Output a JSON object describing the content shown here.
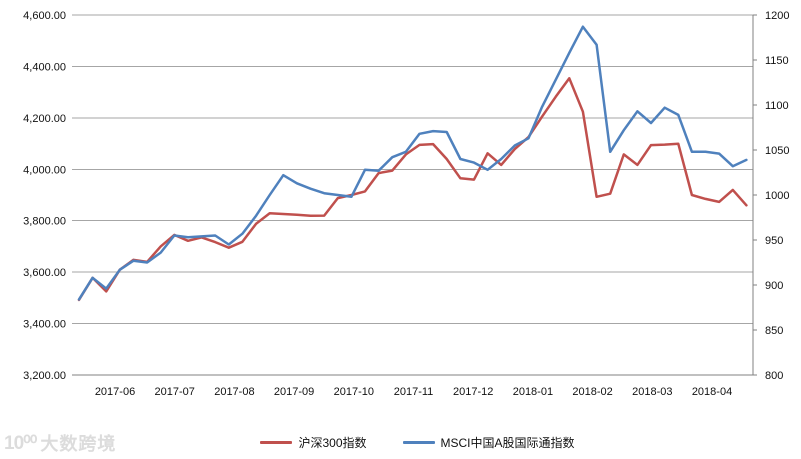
{
  "chart_data": {
    "type": "line",
    "title": "",
    "x_labels": [
      "2017-06",
      "2017-07",
      "2017-08",
      "2017-09",
      "2017-10",
      "2017-11",
      "2017-12",
      "2018-01",
      "2018-02",
      "2018-03",
      "2018-04"
    ],
    "left_axis": {
      "min": 3200,
      "max": 4600,
      "step": 200,
      "tick_labels": [
        "3,200.00",
        "3,400.00",
        "3,600.00",
        "3,800.00",
        "4,000.00",
        "4,200.00",
        "4,400.00",
        "4,600.00"
      ]
    },
    "right_axis": {
      "min": 800,
      "max": 1200,
      "step": 50,
      "tick_labels": [
        "800",
        "850",
        "900",
        "950",
        "1000",
        "1050",
        "1100",
        "1150",
        "1200"
      ]
    },
    "grid": true,
    "legend_position": "bottom",
    "series": [
      {
        "name": "沪深300指数",
        "axis": "left",
        "color": "#C0504D",
        "values": [
          3492,
          3578,
          3525,
          3610,
          3648,
          3640,
          3700,
          3745,
          3722,
          3735,
          3717,
          3695,
          3718,
          3788,
          3829,
          3826,
          3823,
          3819,
          3820,
          3888,
          3900,
          3914,
          3985,
          3995,
          4058,
          4095,
          4098,
          4040,
          3965,
          3960,
          4062,
          4017,
          4079,
          4125,
          4205,
          4282,
          4354,
          4224,
          3893,
          3905,
          4058,
          4017,
          4094,
          4096,
          4099,
          3900,
          3885,
          3873,
          3920,
          3860
        ]
      },
      {
        "name": "MSCI中国A股国际通指数",
        "axis": "right",
        "color": "#4F81BD",
        "values": [
          884,
          908,
          896,
          917,
          927,
          925,
          936,
          955,
          953,
          954,
          955,
          945,
          957,
          977,
          1000,
          1022,
          1013,
          1007,
          1002,
          1000,
          998,
          1028,
          1027,
          1042,
          1048,
          1068,
          1071,
          1070,
          1040,
          1036,
          1028,
          1040,
          1055,
          1063,
          1098,
          1128,
          1158,
          1187,
          1167,
          1048,
          1072,
          1093,
          1080,
          1097,
          1089,
          1048,
          1048,
          1046,
          1032,
          1039
        ]
      }
    ]
  },
  "watermark": {
    "logo": "10⁰⁰",
    "text": "大数跨境"
  },
  "colors": {
    "grid": "#a6a6a6",
    "axis": "#808080",
    "label": "#000000",
    "background": "#ffffff"
  }
}
